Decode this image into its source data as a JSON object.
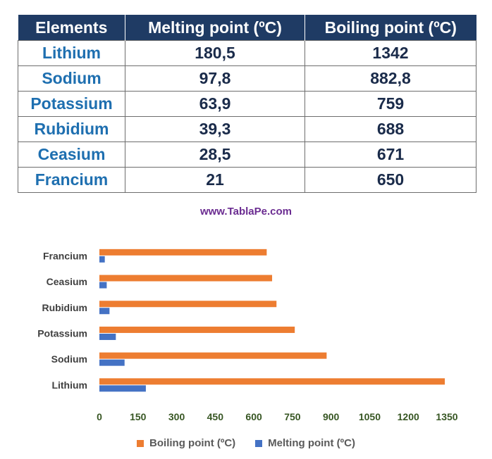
{
  "table": {
    "headers": [
      "Elements",
      "Melting point (ºC)",
      "Boiling point (ºC)"
    ],
    "rows": [
      [
        "Lithium",
        "180,5",
        "1342"
      ],
      [
        "Sodium",
        "97,8",
        "882,8"
      ],
      [
        "Potassium",
        "63,9",
        "759"
      ],
      [
        "Rubidium",
        "39,3",
        "688"
      ],
      [
        "Ceasium",
        "28,5",
        "671"
      ],
      [
        "Francium",
        "21",
        "650"
      ]
    ]
  },
  "watermark": "www.TablaPe.com",
  "chart_data": {
    "type": "bar",
    "orientation": "horizontal",
    "categories": [
      "Lithium",
      "Sodium",
      "Potassium",
      "Rubidium",
      "Ceasium",
      "Francium"
    ],
    "series": [
      {
        "name": "Boiling point (ºC)",
        "values": [
          1342,
          882.8,
          759,
          688,
          671,
          650
        ],
        "color": "#ed7d31"
      },
      {
        "name": "Melting point (ºC)",
        "values": [
          180.5,
          97.8,
          63.9,
          39.3,
          28.5,
          21
        ],
        "color": "#4472c4"
      }
    ],
    "xlim": [
      0,
      1350
    ],
    "xticks": [
      "0",
      "150",
      "300",
      "450",
      "600",
      "750",
      "900",
      "1050",
      "1200",
      "1350"
    ],
    "grid": false,
    "legend": "bottom"
  }
}
